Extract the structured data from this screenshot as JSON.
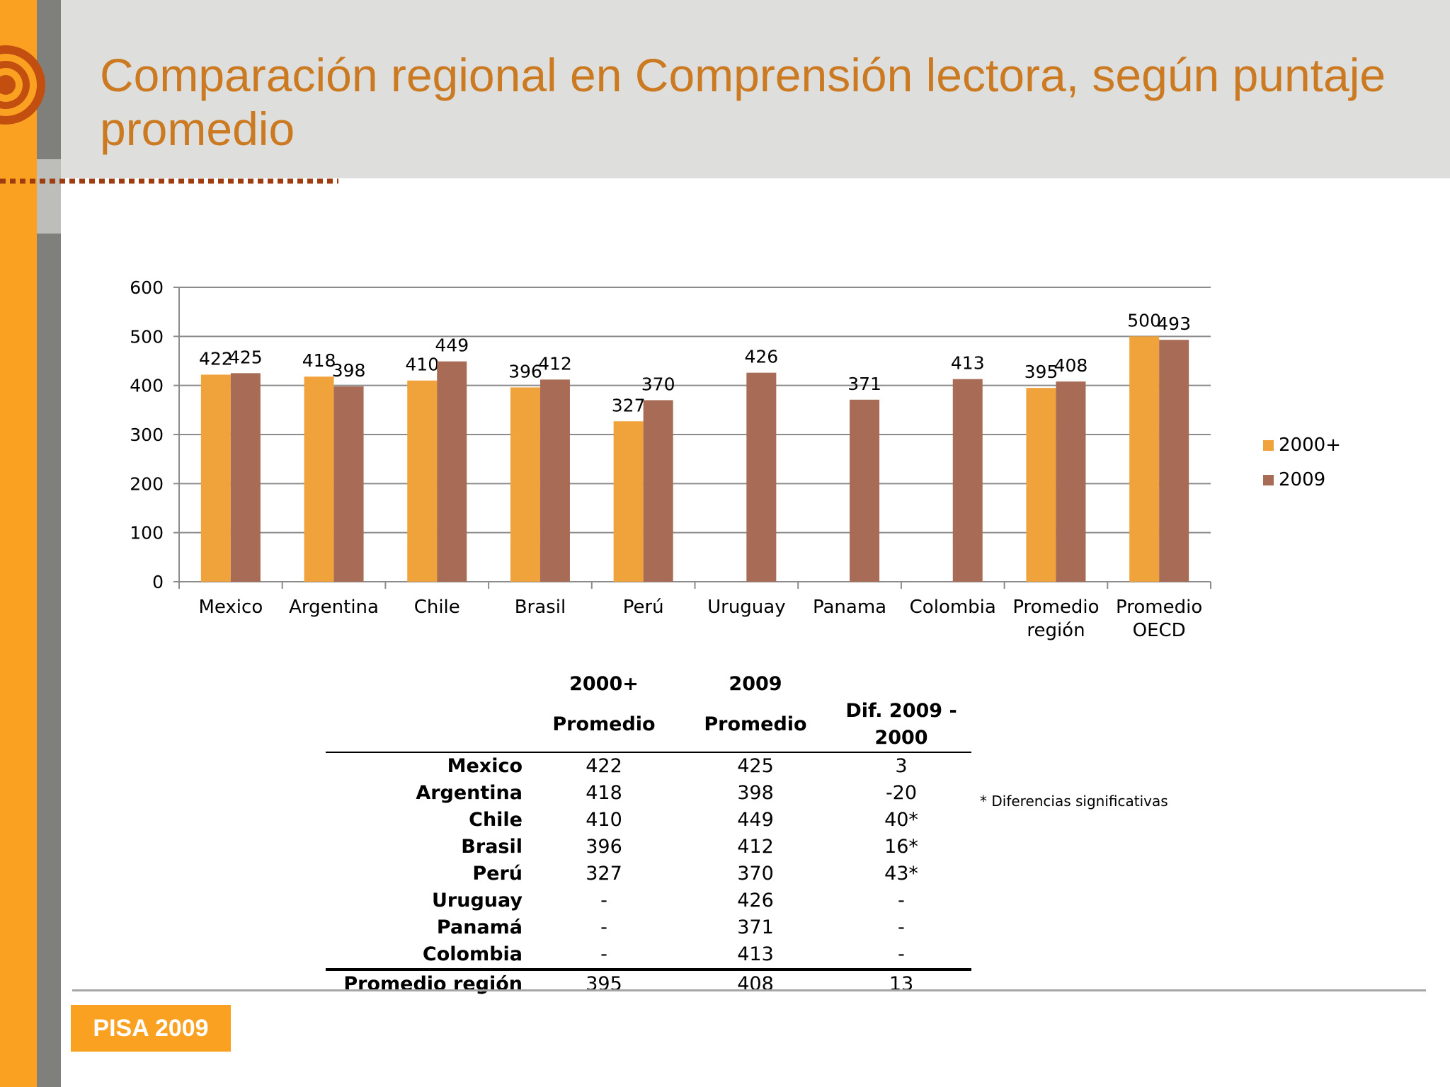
{
  "slide": {
    "title": "Comparación regional en Comprensión lectora, según puntaje promedio",
    "footer_badge": "PISA 2009",
    "note": "* Diferencias significativas"
  },
  "colors": {
    "series_2000": "#F0A33A",
    "series_2009": "#A86B55",
    "title": "#CC7A22",
    "accent_orange": "#FBA122",
    "sidebar_gray": "#7F7F7C",
    "header_bg": "#DEDEDC"
  },
  "chart_data": {
    "type": "bar",
    "categories": [
      "Mexico",
      "Argentina",
      "Chile",
      "Brasil",
      "Perú",
      "Uruguay",
      "Panama",
      "Colombia",
      "Promedio región",
      "Promedio OECD"
    ],
    "series": [
      {
        "name": "2000+",
        "values": [
          422,
          418,
          410,
          396,
          327,
          null,
          null,
          null,
          395,
          500
        ]
      },
      {
        "name": "2009",
        "values": [
          425,
          398,
          449,
          412,
          370,
          426,
          371,
          413,
          408,
          493
        ]
      }
    ],
    "ylim": [
      0,
      600
    ],
    "yticks": [
      0,
      100,
      200,
      300,
      400,
      500,
      600
    ],
    "grid": true,
    "legend": "right"
  },
  "table": {
    "headers": [
      {
        "line1": "",
        "line2": ""
      },
      {
        "line1": "2000+",
        "line2": "Promedio"
      },
      {
        "line1": "2009",
        "line2": "Promedio"
      },
      {
        "line1": "",
        "line2": "Dif. 2009 - 2000"
      }
    ],
    "rows": [
      [
        "Mexico",
        "422",
        "425",
        "3"
      ],
      [
        "Argentina",
        "418",
        "398",
        "-20"
      ],
      [
        "Chile",
        "410",
        "449",
        "40*"
      ],
      [
        "Brasil",
        "396",
        "412",
        "16*"
      ],
      [
        "Perú",
        "327",
        "370",
        "43*"
      ],
      [
        "Uruguay",
        "-",
        "426",
        "-"
      ],
      [
        "Panamá",
        "-",
        "371",
        "-"
      ],
      [
        "Colombia",
        "-",
        "413",
        "-"
      ]
    ],
    "total": [
      "Promedio región",
      "395",
      "408",
      "13"
    ]
  }
}
